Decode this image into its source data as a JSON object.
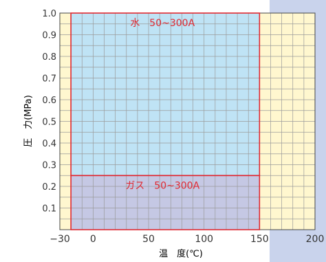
{
  "colors": {
    "panel": "#C9D3EC",
    "plot_bg": "#FFF7CF",
    "grid": "#9A9A9A",
    "water_fill": "#BFE3F5",
    "gas_fill": "#C5C8E4",
    "region_border": "#E02830",
    "axis_text": "#333333"
  },
  "chart_data": {
    "type": "area",
    "xlabel": "温　度(℃)",
    "ylabel": "圧　力(MPa)",
    "xlim": [
      -30,
      200
    ],
    "ylim": [
      0,
      1.0
    ],
    "x_ticks": [
      -30,
      0,
      50,
      100,
      150,
      200
    ],
    "x_tick_labels": [
      "−30",
      "0",
      "50",
      "100",
      "150",
      "200"
    ],
    "y_ticks": [
      0.1,
      0.2,
      0.3,
      0.4,
      0.5,
      0.6,
      0.7,
      0.8,
      0.9,
      1.0
    ],
    "y_tick_labels": [
      "0.1",
      "0.2",
      "0.3",
      "0.4",
      "0.5",
      "0.6",
      "0.7",
      "0.8",
      "0.9",
      "1.0"
    ],
    "x_minor_step": 10,
    "y_minor_step": 0.05,
    "grid": true,
    "regions": [
      {
        "label": "水　50~300A",
        "x": [
          -20,
          150
        ],
        "y": [
          0.25,
          1.0
        ]
      },
      {
        "label": "ガス　50~300A",
        "x": [
          -20,
          150
        ],
        "y": [
          0,
          0.25
        ]
      }
    ]
  }
}
